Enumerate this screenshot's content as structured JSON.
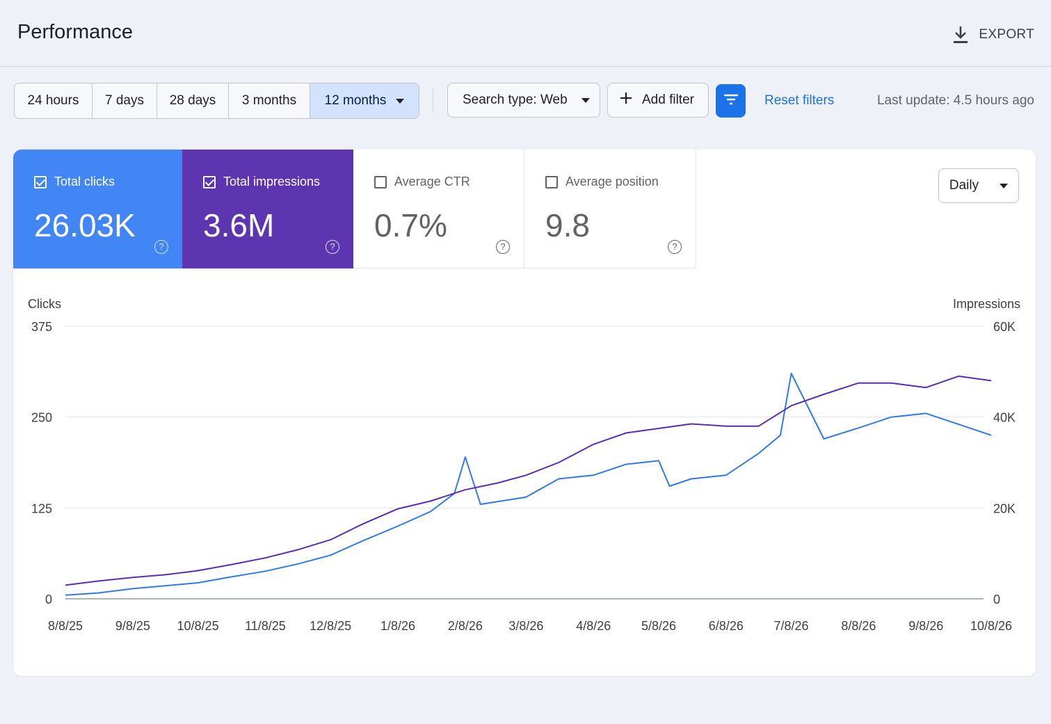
{
  "header": {
    "title": "Performance",
    "export_label": "EXPORT",
    "export_icon": "download-icon"
  },
  "toolbar": {
    "ranges": [
      "24 hours",
      "7 days",
      "28 days",
      "3 months",
      "12 months"
    ],
    "active_range": "12 months",
    "search_type": "Search type: Web",
    "add_filter": "Add filter",
    "filter_icon": "filter-list-icon",
    "reset_filters": "Reset filters",
    "last_update": "Last update: 4.5 hours ago"
  },
  "metrics": [
    {
      "label": "Total clicks",
      "value": "26.03K",
      "checked": true,
      "color": "#4285f4"
    },
    {
      "label": "Total impressions",
      "value": "3.6M",
      "checked": true,
      "color": "#5e35b1"
    },
    {
      "label": "Average CTR",
      "value": "0.7%",
      "checked": false
    },
    {
      "label": "Average position",
      "value": "9.8",
      "checked": false
    }
  ],
  "granularity": "Daily",
  "colors": {
    "clicks": "#2f7ae5",
    "impressions": "#5b2bb0",
    "accent": "#1a73e8"
  },
  "chart_data": {
    "type": "line",
    "x_tick_labels": [
      "8/8/25",
      "9/8/25",
      "10/8/25",
      "11/8/25",
      "12/8/25",
      "1/8/26",
      "2/8/26",
      "3/8/26",
      "4/8/26",
      "5/8/26",
      "6/8/26",
      "7/8/26",
      "8/8/26",
      "9/8/26",
      "10/8/26"
    ],
    "y_left": {
      "label": "Clicks",
      "ticks": [
        "375",
        "250",
        "125",
        "0"
      ],
      "range": [
        0,
        375
      ]
    },
    "y_right": {
      "label": "Impressions",
      "ticks": [
        "60K",
        "40K",
        "20K",
        "0"
      ],
      "range": [
        0,
        60000
      ]
    },
    "grid": true,
    "series": [
      {
        "axis": "left",
        "color": "#2f7ae5",
        "x": [
          "8/8/25",
          "8/23/25",
          "9/8/25",
          "9/23/25",
          "10/8/25",
          "10/23/25",
          "11/8/25",
          "11/23/25",
          "12/8/25",
          "12/23/25",
          "1/8/26",
          "1/23/26",
          "2/3/26",
          "2/8/26",
          "2/15/26",
          "3/8/26",
          "3/23/26",
          "4/8/26",
          "4/23/26",
          "5/8/26",
          "5/13/26",
          "5/23/26",
          "6/8/26",
          "6/23/26",
          "7/3/26",
          "7/8/26",
          "7/23/26",
          "8/8/26",
          "8/23/26",
          "9/8/26",
          "9/23/26",
          "10/8/26"
        ],
        "values": [
          5,
          8,
          14,
          18,
          22,
          30,
          38,
          48,
          60,
          80,
          100,
          120,
          145,
          195,
          130,
          140,
          165,
          170,
          185,
          190,
          155,
          165,
          170,
          200,
          225,
          310,
          220,
          235,
          250,
          255,
          240,
          225
        ]
      },
      {
        "axis": "right",
        "color": "#5b2bb0",
        "x": [
          "8/8/25",
          "8/23/25",
          "9/8/25",
          "9/23/25",
          "10/8/25",
          "10/23/25",
          "11/8/25",
          "11/23/25",
          "12/8/25",
          "12/23/25",
          "1/8/26",
          "1/23/26",
          "2/8/26",
          "2/23/26",
          "3/8/26",
          "3/23/26",
          "4/8/26",
          "4/23/26",
          "5/8/26",
          "5/23/26",
          "6/8/26",
          "6/23/26",
          "7/8/26",
          "7/23/26",
          "8/8/26",
          "8/23/26",
          "9/8/26",
          "9/23/26",
          "10/8/26"
        ],
        "values": [
          3000,
          3900,
          4700,
          5300,
          6200,
          7500,
          9000,
          10800,
          13000,
          16500,
          19800,
          21500,
          24000,
          25500,
          27200,
          30000,
          34000,
          36500,
          37500,
          38500,
          38000,
          38000,
          42500,
          45000,
          47500,
          47500,
          46500,
          49000,
          48000
        ]
      }
    ]
  }
}
